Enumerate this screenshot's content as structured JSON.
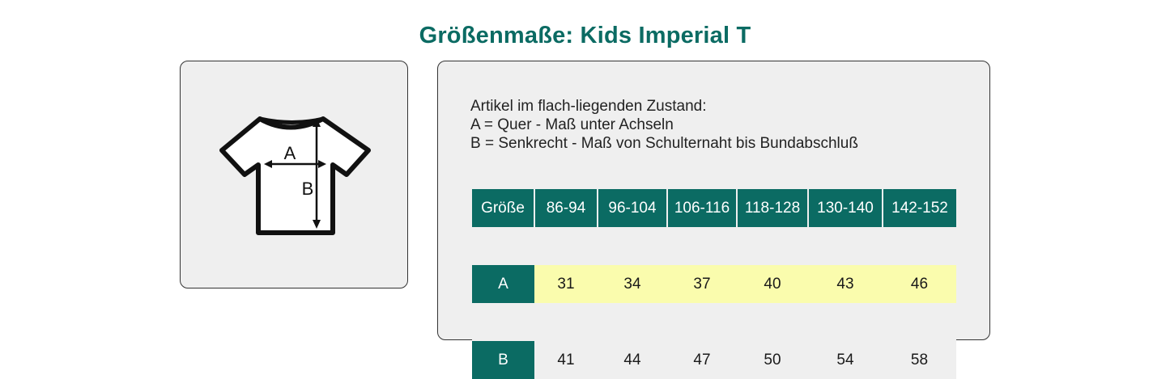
{
  "title": "Größenmaße: Kids Imperial T",
  "diagram": {
    "label_a": "A",
    "label_b": "B"
  },
  "description": [
    "Artikel im flach-liegenden Zustand:",
    "A = Quer - Maß unter Achseln",
    "B = Senkrecht - Maß von Schulternaht bis Bundabschluß"
  ],
  "table": {
    "corner": "Größe",
    "sizes": [
      "86-94",
      "96-104",
      "106-116",
      "118-128",
      "130-140",
      "142-152"
    ],
    "rows": [
      {
        "label": "A",
        "values": [
          "31",
          "34",
          "37",
          "40",
          "43",
          "46"
        ]
      },
      {
        "label": "B",
        "values": [
          "41",
          "44",
          "47",
          "50",
          "54",
          "58"
        ]
      }
    ]
  },
  "colors": {
    "accent": "#0b6b63",
    "highlight_row": "#fafcad",
    "card_background": "#efefef"
  }
}
